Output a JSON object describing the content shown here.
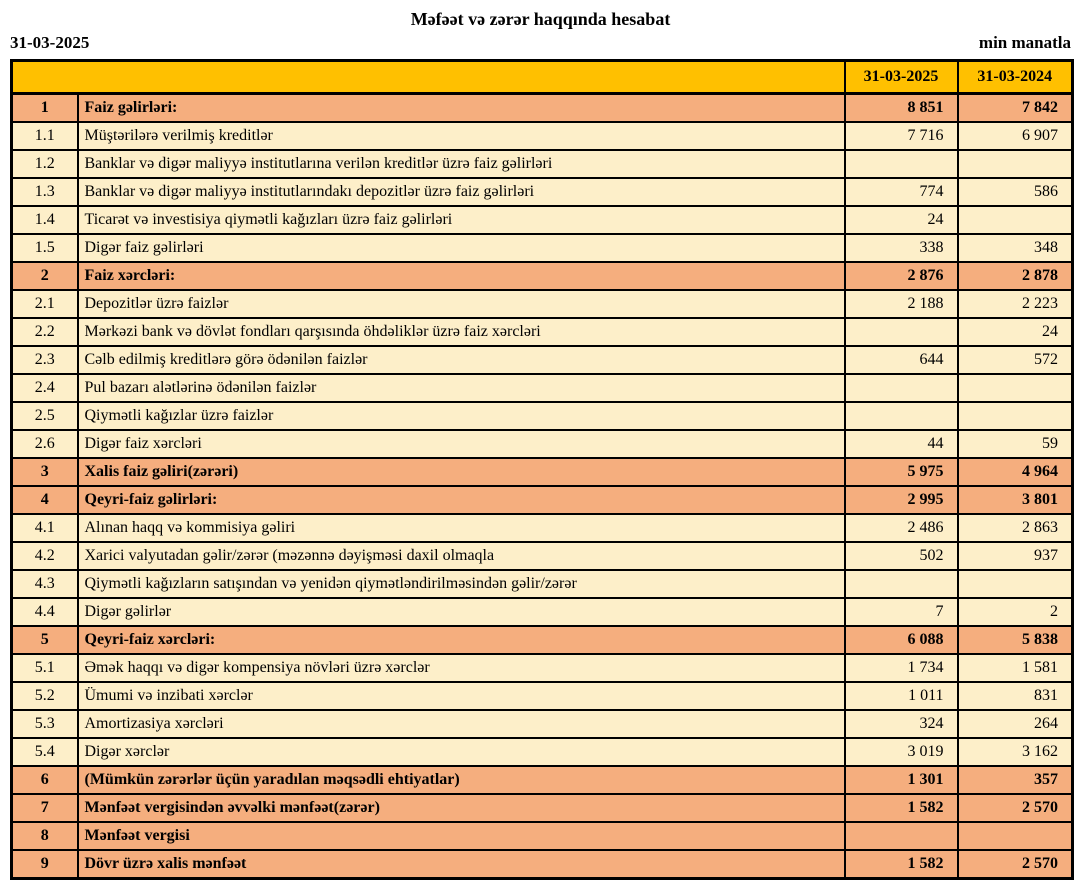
{
  "page": {
    "title": "Məfəət və zərər haqqında hesabat",
    "report_date": "31-03-2025",
    "unit_label": "min manatla"
  },
  "colors": {
    "header_bg": "#FFC000",
    "section_row_bg": "#F5AE7E",
    "detail_row_bg": "#FDEFC9",
    "border": "#000000"
  },
  "table": {
    "column_headers": [
      "31-03-2025",
      "31-03-2024"
    ],
    "rows": [
      {
        "no": "1",
        "label": "Faiz gəlirləri:",
        "v2025": "8 851",
        "v2024": "7 842",
        "section": true
      },
      {
        "no": "1.1",
        "label": "Müştərilərə verilmiş kreditlər",
        "v2025": "7 716",
        "v2024": "6 907",
        "section": false
      },
      {
        "no": "1.2",
        "label": "Banklar və digər maliyyə institutlarına verilən kreditlər üzrə faiz gəlirləri",
        "v2025": "",
        "v2024": "",
        "section": false
      },
      {
        "no": "1.3",
        "label": "Banklar və digər maliyyə institutlarındakı depozitlər üzrə faiz gəlirləri",
        "v2025": "774",
        "v2024": "586",
        "section": false
      },
      {
        "no": "1.4",
        "label": "Ticarət və investisiya qiymətli kağızları üzrə faiz gəlirləri",
        "v2025": "24",
        "v2024": "",
        "section": false
      },
      {
        "no": "1.5",
        "label": "Digər faiz gəlirləri",
        "v2025": "338",
        "v2024": "348",
        "section": false
      },
      {
        "no": "2",
        "label": "Faiz xərcləri:",
        "v2025": "2 876",
        "v2024": "2 878",
        "section": true
      },
      {
        "no": "2.1",
        "label": "Depozitlər üzrə faizlər",
        "v2025": "2 188",
        "v2024": "2 223",
        "section": false
      },
      {
        "no": "2.2",
        "label": "Mərkəzi bank və dövlət fondları qarşısında öhdəliklər üzrə faiz xərcləri",
        "v2025": "",
        "v2024": "24",
        "section": false
      },
      {
        "no": "2.3",
        "label": "Cəlb edilmiş kreditlərə görə ödənilən faizlər",
        "v2025": "644",
        "v2024": "572",
        "section": false
      },
      {
        "no": "2.4",
        "label": "Pul bazarı alətlərinə ödənilən faizlər",
        "v2025": "",
        "v2024": "",
        "section": false
      },
      {
        "no": "2.5",
        "label": "Qiymətli kağızlar üzrə faizlər",
        "v2025": "",
        "v2024": "",
        "section": false
      },
      {
        "no": "2.6",
        "label": "Digər faiz xərcləri",
        "v2025": "44",
        "v2024": "59",
        "section": false
      },
      {
        "no": "3",
        "label": "Xalis faiz gəliri(zərəri)",
        "v2025": "5 975",
        "v2024": "4 964",
        "section": true
      },
      {
        "no": "4",
        "label": "Qeyri-faiz gəlirləri:",
        "v2025": "2 995",
        "v2024": "3 801",
        "section": true
      },
      {
        "no": "4.1",
        "label": "Alınan haqq və kommisiya gəliri",
        "v2025": "2 486",
        "v2024": "2 863",
        "section": false
      },
      {
        "no": "4.2",
        "label": "Xarici valyutadan gəlir/zərər (məzənnə dəyişməsi daxil olmaqla",
        "v2025": "502",
        "v2024": "937",
        "section": false
      },
      {
        "no": "4.3",
        "label": "Qiymətli kağızların satışından və yenidən qiymətləndirilməsindən gəlir/zərər",
        "v2025": "",
        "v2024": "",
        "section": false
      },
      {
        "no": "4.4",
        "label": "Digər gəlirlər",
        "v2025": "7",
        "v2024": "2",
        "section": false
      },
      {
        "no": "5",
        "label": "Qeyri-faiz xərcləri:",
        "v2025": "6 088",
        "v2024": "5 838",
        "section": true
      },
      {
        "no": "5.1",
        "label": "Əmək haqqı və digər kompensiya növləri üzrə xərclər",
        "v2025": "1 734",
        "v2024": "1 581",
        "section": false
      },
      {
        "no": "5.2",
        "label": "Ümumi və inzibati xərclər",
        "v2025": "1 011",
        "v2024": "831",
        "section": false
      },
      {
        "no": "5.3",
        "label": "Amortizasiya xərcləri",
        "v2025": "324",
        "v2024": "264",
        "section": false
      },
      {
        "no": "5.4",
        "label": "Digər xərclər",
        "v2025": "3 019",
        "v2024": "3 162",
        "section": false
      },
      {
        "no": "6",
        "label": "(Mümkün zərərlər üçün yaradılan məqsədli ehtiyatlar)",
        "v2025": "1 301",
        "v2024": "357",
        "section": true
      },
      {
        "no": "7",
        "label": "Mənfəət vergisindən əvvəlki mənfəət(zərər)",
        "v2025": "1 582",
        "v2024": "2 570",
        "section": true
      },
      {
        "no": "8",
        "label": "Mənfəət vergisi",
        "v2025": "",
        "v2024": "",
        "section": true
      },
      {
        "no": "9",
        "label": "Dövr üzrə xalis mənfəət",
        "v2025": "1 582",
        "v2024": "2 570",
        "section": true
      }
    ]
  }
}
